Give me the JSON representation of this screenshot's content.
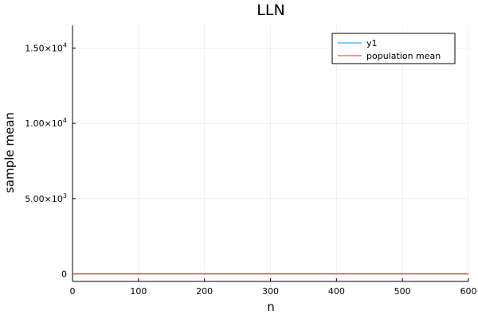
{
  "chart_data": {
    "type": "line",
    "title": "LLN",
    "xlabel": "n",
    "ylabel": "sample mean",
    "xlim": [
      0,
      600
    ],
    "ylim": [
      -500,
      16500
    ],
    "x_ticks": [
      0,
      100,
      200,
      300,
      400,
      500,
      600
    ],
    "x_tick_labels": [
      "0",
      "100",
      "200",
      "300",
      "400",
      "500",
      "600"
    ],
    "y_ticks": [
      0,
      5000,
      10000,
      15000
    ],
    "y_tick_labels": [
      {
        "mantissa": "0",
        "exp": ""
      },
      {
        "mantissa": "5.00×10",
        "exp": "3"
      },
      {
        "mantissa": "1.00×10",
        "exp": "4"
      },
      {
        "mantissa": "1.50×10",
        "exp": "4"
      }
    ],
    "grid": true,
    "legend_position": "top-right",
    "series": [
      {
        "name": "y1",
        "color": "#009AFA",
        "x": [
          1,
          600
        ],
        "y": [
          0,
          0
        ]
      },
      {
        "name": "population mean",
        "color": "#E3321E",
        "x": [
          0,
          600
        ],
        "y": [
          0,
          0
        ]
      }
    ]
  }
}
